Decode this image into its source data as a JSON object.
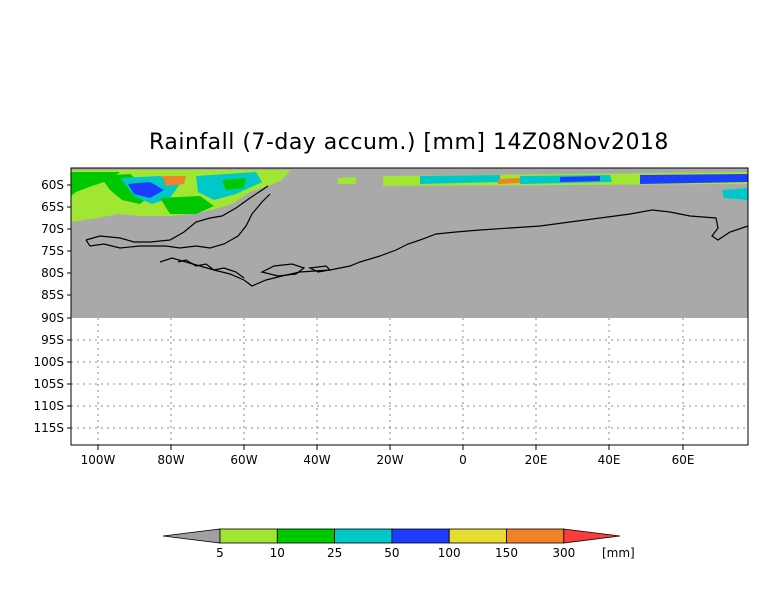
{
  "title": "Rainfall (7-day accum.) [mm] 14Z08Nov2018",
  "map": {
    "lat_labels": [
      "60S",
      "65S",
      "70S",
      "75S",
      "80S",
      "85S",
      "90S",
      "95S",
      "100S",
      "105S",
      "110S",
      "115S"
    ],
    "lon_labels": [
      "100W",
      "80W",
      "60W",
      "40W",
      "20W",
      "0",
      "20E",
      "40E",
      "60E"
    ],
    "extent": {
      "lon_min": -106,
      "lon_max": 77,
      "lat_top": -58,
      "lat_bottom": -119
    },
    "no_data_fill": "#a9a9a9",
    "grid": "dotted"
  },
  "colorbar": {
    "unit_label": "[mm]",
    "thresholds": [
      "5",
      "10",
      "25",
      "50",
      "100",
      "150",
      "300"
    ],
    "colors": [
      "#a0a0a0",
      "#a0e632",
      "#00c800",
      "#00c8c8",
      "#1e3cff",
      "#e6dc32",
      "#f08228",
      "#fa3c3c"
    ]
  }
}
